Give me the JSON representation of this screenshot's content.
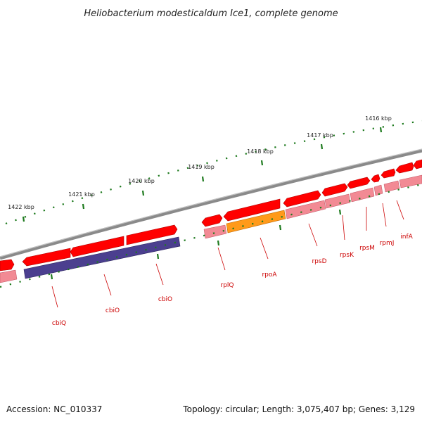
{
  "title": "Heliobacterium modesticaldum Ice1, complete genome",
  "footer": {
    "accession": "Accession: NC_010337",
    "summary": "Topology: circular; Length: 3,075,407 bp; Genes: 3,129"
  },
  "ticks": [
    {
      "label": "1416 kbp"
    },
    {
      "label": "1417 kbp"
    },
    {
      "label": "1418 kbp"
    },
    {
      "label": "1419 kbp"
    },
    {
      "label": "1420 kbp"
    },
    {
      "label": "1421 kbp"
    },
    {
      "label": "1422 kbp"
    }
  ],
  "genes": [
    {
      "label": "infA",
      "color": "#cc0000"
    },
    {
      "label": "rpmJ",
      "color": "#cc0000"
    },
    {
      "label": "rpsM",
      "color": "#cc0000"
    },
    {
      "label": "rpsK",
      "color": "#cc0000"
    },
    {
      "label": "rpsD",
      "color": "#cc0000"
    },
    {
      "label": "rpoA",
      "color": "#cc0000"
    },
    {
      "label": "rplQ",
      "color": "#cc0000"
    },
    {
      "label": "cbiO",
      "color": "#cc0000"
    },
    {
      "label": "cbiO",
      "color": "#cc0000"
    },
    {
      "label": "cbiQ",
      "color": "#cc0000"
    }
  ],
  "colors": {
    "cds": "#ff0000",
    "cds_light": "#f28a94",
    "highlight_orange": "#ff9a1a",
    "highlight_purple": "#4b3f8f",
    "backbone": "#8a8a8a",
    "tick": "#1e7a1e"
  }
}
